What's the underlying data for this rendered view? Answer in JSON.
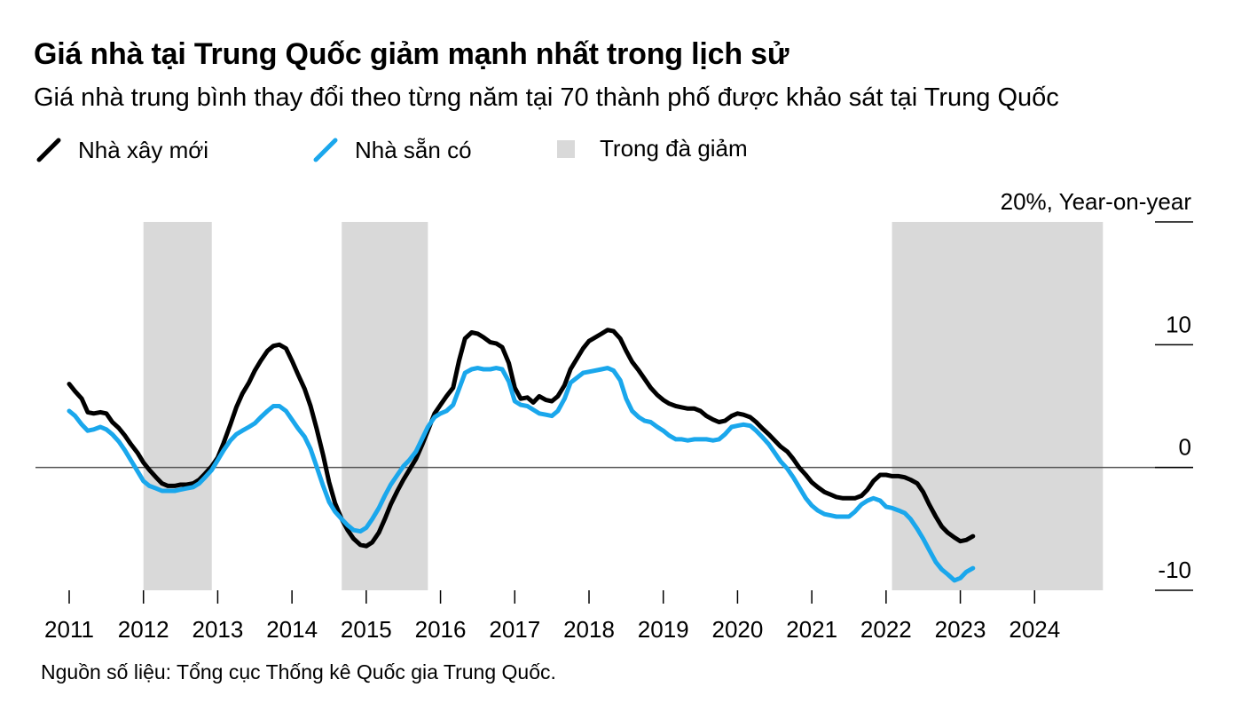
{
  "title": "Giá nhà tại Trung Quốc giảm mạnh nhất trong lịch sử",
  "subtitle": "Giá nhà trung bình thay đổi theo từng năm tại 70 thành phố được khảo sát tại Trung Quốc",
  "legend": {
    "new_homes": "Nhà xây mới",
    "existing_homes": "Nhà sẵn có",
    "decline_period": "Trong đà giảm"
  },
  "source": "Nguồn số liệu: Tổng cục Thống kê Quốc gia Trung Quốc.",
  "colors": {
    "new_homes": "#000000",
    "existing_homes": "#1aa7ec",
    "decline_shading": "#d9d9d9",
    "zero_line": "#555555"
  },
  "chart_data": {
    "type": "line",
    "title": "Giá nhà tại Trung Quốc giảm mạnh nhất trong lịch sử",
    "subtitle": "Giá nhà trung bình thay đổi theo từng năm tại 70 thành phố được khảo sát tại Trung Quốc",
    "y_axis_label": "20%, Year-on-year",
    "y_ticks": [
      "20%, Year-on-year",
      "10",
      "0",
      "-10"
    ],
    "y_tick_values": [
      20,
      10,
      0,
      -10
    ],
    "ylim": [
      -10,
      20
    ],
    "x_ticks": [
      "2011",
      "2012",
      "2013",
      "2014",
      "2015",
      "2016",
      "2017",
      "2018",
      "2019",
      "2020",
      "2021",
      "2022",
      "2023",
      "2024"
    ],
    "xlim": [
      2011,
      2025
    ],
    "grid": false,
    "legend_position": "top-left",
    "shaded_periods": [
      [
        2012.0,
        2012.92
      ],
      [
        2014.67,
        2015.83
      ],
      [
        2022.08,
        2024.92
      ]
    ],
    "series": [
      {
        "name": "Nhà xây mới",
        "color": "#000000",
        "points": [
          [
            2011.0,
            6.8
          ],
          [
            2011.08,
            6.2
          ],
          [
            2011.17,
            5.6
          ],
          [
            2011.25,
            4.5
          ],
          [
            2011.33,
            4.4
          ],
          [
            2011.42,
            4.5
          ],
          [
            2011.5,
            4.4
          ],
          [
            2011.58,
            3.7
          ],
          [
            2011.67,
            3.2
          ],
          [
            2011.75,
            2.6
          ],
          [
            2011.83,
            1.9
          ],
          [
            2011.92,
            1.2
          ],
          [
            2012.0,
            0.4
          ],
          [
            2012.08,
            -0.2
          ],
          [
            2012.17,
            -0.8
          ],
          [
            2012.25,
            -1.3
          ],
          [
            2012.33,
            -1.5
          ],
          [
            2012.42,
            -1.5
          ],
          [
            2012.5,
            -1.4
          ],
          [
            2012.58,
            -1.4
          ],
          [
            2012.67,
            -1.3
          ],
          [
            2012.75,
            -1.0
          ],
          [
            2012.83,
            -0.5
          ],
          [
            2012.92,
            0.1
          ],
          [
            2013.0,
            0.8
          ],
          [
            2013.08,
            2.0
          ],
          [
            2013.17,
            3.5
          ],
          [
            2013.25,
            4.9
          ],
          [
            2013.33,
            6.0
          ],
          [
            2013.42,
            6.9
          ],
          [
            2013.5,
            7.9
          ],
          [
            2013.58,
            8.7
          ],
          [
            2013.67,
            9.5
          ],
          [
            2013.75,
            9.9
          ],
          [
            2013.83,
            10.0
          ],
          [
            2013.92,
            9.7
          ],
          [
            2014.0,
            8.7
          ],
          [
            2014.08,
            7.6
          ],
          [
            2014.17,
            6.4
          ],
          [
            2014.25,
            5.0
          ],
          [
            2014.33,
            3.2
          ],
          [
            2014.42,
            1.0
          ],
          [
            2014.5,
            -1.2
          ],
          [
            2014.58,
            -2.9
          ],
          [
            2014.67,
            -4.2
          ],
          [
            2014.75,
            -5.1
          ],
          [
            2014.83,
            -5.8
          ],
          [
            2014.92,
            -6.3
          ],
          [
            2015.0,
            -6.4
          ],
          [
            2015.08,
            -6.1
          ],
          [
            2015.17,
            -5.3
          ],
          [
            2015.25,
            -4.2
          ],
          [
            2015.33,
            -3.0
          ],
          [
            2015.42,
            -1.9
          ],
          [
            2015.5,
            -1.0
          ],
          [
            2015.58,
            -0.2
          ],
          [
            2015.67,
            0.7
          ],
          [
            2015.75,
            1.8
          ],
          [
            2015.83,
            3.0
          ],
          [
            2015.92,
            4.4
          ],
          [
            2016.0,
            5.1
          ],
          [
            2016.08,
            5.8
          ],
          [
            2016.17,
            6.5
          ],
          [
            2016.25,
            8.7
          ],
          [
            2016.33,
            10.5
          ],
          [
            2016.42,
            11.0
          ],
          [
            2016.5,
            10.9
          ],
          [
            2016.58,
            10.6
          ],
          [
            2016.67,
            10.2
          ],
          [
            2016.75,
            10.1
          ],
          [
            2016.83,
            9.8
          ],
          [
            2016.92,
            8.5
          ],
          [
            2017.0,
            6.5
          ],
          [
            2017.08,
            5.6
          ],
          [
            2017.17,
            5.7
          ],
          [
            2017.25,
            5.3
          ],
          [
            2017.33,
            5.8
          ],
          [
            2017.42,
            5.5
          ],
          [
            2017.5,
            5.4
          ],
          [
            2017.58,
            5.8
          ],
          [
            2017.67,
            6.7
          ],
          [
            2017.75,
            8.0
          ],
          [
            2017.92,
            9.7
          ],
          [
            2018.0,
            10.3
          ],
          [
            2018.17,
            10.9
          ],
          [
            2018.25,
            11.2
          ],
          [
            2018.33,
            11.1
          ],
          [
            2018.42,
            10.5
          ],
          [
            2018.5,
            9.5
          ],
          [
            2018.58,
            8.6
          ],
          [
            2018.67,
            7.9
          ],
          [
            2018.75,
            7.2
          ],
          [
            2018.83,
            6.5
          ],
          [
            2018.92,
            5.9
          ],
          [
            2019.0,
            5.5
          ],
          [
            2019.08,
            5.2
          ],
          [
            2019.17,
            5.0
          ],
          [
            2019.25,
            4.9
          ],
          [
            2019.33,
            4.8
          ],
          [
            2019.42,
            4.8
          ],
          [
            2019.5,
            4.6
          ],
          [
            2019.58,
            4.2
          ],
          [
            2019.67,
            3.9
          ],
          [
            2019.75,
            3.7
          ],
          [
            2019.83,
            3.8
          ],
          [
            2019.92,
            4.2
          ],
          [
            2020.0,
            4.4
          ],
          [
            2020.08,
            4.3
          ],
          [
            2020.17,
            4.1
          ],
          [
            2020.25,
            3.7
          ],
          [
            2020.33,
            3.2
          ],
          [
            2020.42,
            2.7
          ],
          [
            2020.5,
            2.2
          ],
          [
            2020.58,
            1.7
          ],
          [
            2020.67,
            1.3
          ],
          [
            2020.75,
            0.7
          ],
          [
            2020.83,
            0.0
          ],
          [
            2020.92,
            -0.6
          ],
          [
            2021.0,
            -1.2
          ],
          [
            2021.08,
            -1.6
          ],
          [
            2021.17,
            -2.0
          ],
          [
            2021.25,
            -2.2
          ],
          [
            2021.33,
            -2.4
          ],
          [
            2021.42,
            -2.5
          ],
          [
            2021.5,
            -2.5
          ],
          [
            2021.58,
            -2.5
          ],
          [
            2021.67,
            -2.3
          ],
          [
            2021.75,
            -1.8
          ],
          [
            2021.83,
            -1.1
          ],
          [
            2021.92,
            -0.6
          ],
          [
            2022.0,
            -0.6
          ],
          [
            2022.08,
            -0.7
          ],
          [
            2022.17,
            -0.7
          ],
          [
            2022.25,
            -0.8
          ],
          [
            2022.33,
            -1.0
          ],
          [
            2022.42,
            -1.3
          ],
          [
            2022.5,
            -2.0
          ],
          [
            2022.58,
            -3.0
          ],
          [
            2022.67,
            -4.0
          ],
          [
            2022.75,
            -4.8
          ],
          [
            2022.83,
            -5.3
          ],
          [
            2022.92,
            -5.7
          ],
          [
            2023.0,
            -6.0
          ],
          [
            2023.08,
            -5.9
          ],
          [
            2023.17,
            -5.6
          ]
        ]
      },
      {
        "name": "Nhà sẵn có",
        "color": "#1aa7ec",
        "points": [
          [
            2011.0,
            4.6
          ],
          [
            2011.08,
            4.2
          ],
          [
            2011.17,
            3.5
          ],
          [
            2011.25,
            3.0
          ],
          [
            2011.33,
            3.1
          ],
          [
            2011.42,
            3.3
          ],
          [
            2011.5,
            3.1
          ],
          [
            2011.58,
            2.7
          ],
          [
            2011.67,
            2.1
          ],
          [
            2011.75,
            1.4
          ],
          [
            2011.83,
            0.6
          ],
          [
            2011.92,
            -0.3
          ],
          [
            2012.0,
            -1.1
          ],
          [
            2012.08,
            -1.5
          ],
          [
            2012.17,
            -1.7
          ],
          [
            2012.25,
            -1.9
          ],
          [
            2012.33,
            -1.9
          ],
          [
            2012.42,
            -1.9
          ],
          [
            2012.5,
            -1.8
          ],
          [
            2012.58,
            -1.7
          ],
          [
            2012.67,
            -1.6
          ],
          [
            2012.75,
            -1.3
          ],
          [
            2012.83,
            -0.8
          ],
          [
            2012.92,
            -0.2
          ],
          [
            2013.0,
            0.6
          ],
          [
            2013.08,
            1.4
          ],
          [
            2013.17,
            2.2
          ],
          [
            2013.25,
            2.7
          ],
          [
            2013.33,
            3.0
          ],
          [
            2013.42,
            3.3
          ],
          [
            2013.5,
            3.6
          ],
          [
            2013.58,
            4.1
          ],
          [
            2013.67,
            4.6
          ],
          [
            2013.75,
            5.0
          ],
          [
            2013.83,
            5.0
          ],
          [
            2013.92,
            4.6
          ],
          [
            2014.0,
            3.9
          ],
          [
            2014.08,
            3.2
          ],
          [
            2014.17,
            2.5
          ],
          [
            2014.25,
            1.5
          ],
          [
            2014.33,
            0.1
          ],
          [
            2014.42,
            -1.5
          ],
          [
            2014.5,
            -2.8
          ],
          [
            2014.58,
            -3.6
          ],
          [
            2014.67,
            -4.2
          ],
          [
            2014.75,
            -4.7
          ],
          [
            2014.83,
            -5.1
          ],
          [
            2014.92,
            -5.2
          ],
          [
            2015.0,
            -4.9
          ],
          [
            2015.08,
            -4.2
          ],
          [
            2015.17,
            -3.3
          ],
          [
            2015.25,
            -2.3
          ],
          [
            2015.33,
            -1.4
          ],
          [
            2015.42,
            -0.6
          ],
          [
            2015.5,
            0.1
          ],
          [
            2015.58,
            0.6
          ],
          [
            2015.67,
            1.3
          ],
          [
            2015.75,
            2.3
          ],
          [
            2015.83,
            3.3
          ],
          [
            2015.92,
            4.1
          ],
          [
            2016.0,
            4.4
          ],
          [
            2016.08,
            4.6
          ],
          [
            2016.17,
            5.1
          ],
          [
            2016.25,
            6.4
          ],
          [
            2016.33,
            7.7
          ],
          [
            2016.42,
            8.0
          ],
          [
            2016.5,
            8.1
          ],
          [
            2016.58,
            8.0
          ],
          [
            2016.67,
            8.0
          ],
          [
            2016.75,
            8.1
          ],
          [
            2016.83,
            8.0
          ],
          [
            2016.92,
            7.0
          ],
          [
            2017.0,
            5.4
          ],
          [
            2017.08,
            5.1
          ],
          [
            2017.17,
            5.0
          ],
          [
            2017.25,
            4.7
          ],
          [
            2017.33,
            4.4
          ],
          [
            2017.42,
            4.3
          ],
          [
            2017.5,
            4.2
          ],
          [
            2017.58,
            4.6
          ],
          [
            2017.67,
            5.6
          ],
          [
            2017.75,
            6.9
          ],
          [
            2017.92,
            7.7
          ],
          [
            2018.0,
            7.8
          ],
          [
            2018.17,
            8.0
          ],
          [
            2018.25,
            8.1
          ],
          [
            2018.33,
            7.9
          ],
          [
            2018.42,
            7.1
          ],
          [
            2018.5,
            5.6
          ],
          [
            2018.58,
            4.6
          ],
          [
            2018.67,
            4.1
          ],
          [
            2018.75,
            3.8
          ],
          [
            2018.83,
            3.7
          ],
          [
            2018.92,
            3.3
          ],
          [
            2019.0,
            3.0
          ],
          [
            2019.08,
            2.6
          ],
          [
            2019.17,
            2.3
          ],
          [
            2019.25,
            2.3
          ],
          [
            2019.33,
            2.2
          ],
          [
            2019.42,
            2.3
          ],
          [
            2019.5,
            2.3
          ],
          [
            2019.58,
            2.3
          ],
          [
            2019.67,
            2.2
          ],
          [
            2019.75,
            2.3
          ],
          [
            2019.83,
            2.7
          ],
          [
            2019.92,
            3.3
          ],
          [
            2020.0,
            3.4
          ],
          [
            2020.08,
            3.5
          ],
          [
            2020.17,
            3.4
          ],
          [
            2020.25,
            3.0
          ],
          [
            2020.33,
            2.5
          ],
          [
            2020.42,
            1.9
          ],
          [
            2020.5,
            1.2
          ],
          [
            2020.58,
            0.5
          ],
          [
            2020.67,
            -0.1
          ],
          [
            2020.75,
            -0.8
          ],
          [
            2020.83,
            -1.6
          ],
          [
            2020.92,
            -2.5
          ],
          [
            2021.0,
            -3.1
          ],
          [
            2021.08,
            -3.5
          ],
          [
            2021.17,
            -3.8
          ],
          [
            2021.25,
            -3.9
          ],
          [
            2021.33,
            -4.0
          ],
          [
            2021.42,
            -4.0
          ],
          [
            2021.5,
            -4.0
          ],
          [
            2021.58,
            -3.6
          ],
          [
            2021.67,
            -3.0
          ],
          [
            2021.75,
            -2.7
          ],
          [
            2021.83,
            -2.5
          ],
          [
            2021.92,
            -2.7
          ],
          [
            2022.0,
            -3.2
          ],
          [
            2022.08,
            -3.3
          ],
          [
            2022.17,
            -3.5
          ],
          [
            2022.25,
            -3.7
          ],
          [
            2022.33,
            -4.2
          ],
          [
            2022.42,
            -5.0
          ],
          [
            2022.5,
            -5.8
          ],
          [
            2022.58,
            -6.7
          ],
          [
            2022.67,
            -7.7
          ],
          [
            2022.75,
            -8.3
          ],
          [
            2022.83,
            -8.7
          ],
          [
            2022.92,
            -9.2
          ],
          [
            2023.0,
            -9.0
          ],
          [
            2023.08,
            -8.5
          ],
          [
            2023.17,
            -8.2
          ]
        ]
      }
    ]
  }
}
